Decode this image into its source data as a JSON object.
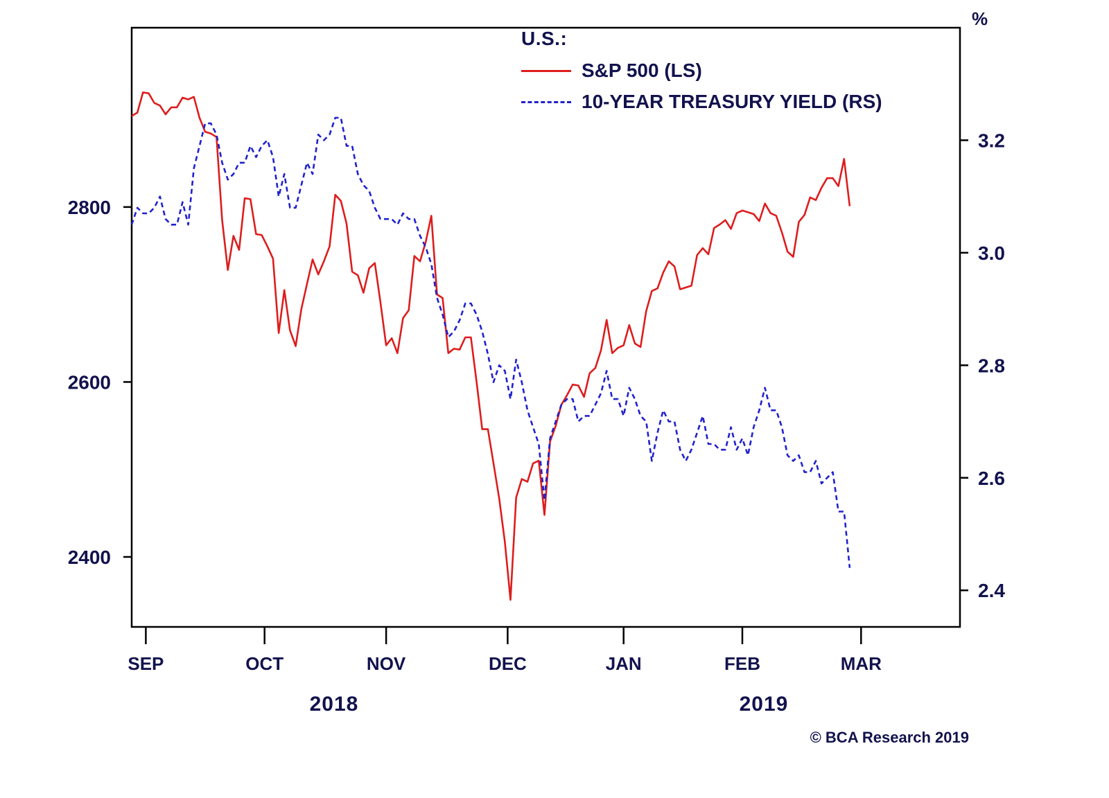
{
  "colors": {
    "sp500": "#dd1d1d",
    "treasury": "#2121cd",
    "ink": "#12124e",
    "frame": "#000000"
  },
  "legend": {
    "group": "U.S.:",
    "series1": "S&P 500 (LS)",
    "series2": "10-YEAR TREASURY YIELD (RS)"
  },
  "right_axis_unit": "%",
  "footer": {
    "year_left": "2018",
    "year_right": "2019",
    "credit": "© BCA Research 2019"
  },
  "chart_data": {
    "type": "line",
    "title": "",
    "legend_position": "top-center-inside",
    "grid": false,
    "x": {
      "month_labels": [
        "SEP",
        "OCT",
        "NOV",
        "DEC",
        "JAN",
        "FEB",
        "MAR"
      ],
      "month_tick_positions": [
        2.5,
        23.5,
        45,
        66.5,
        87,
        108,
        129
      ],
      "total_span": 146.5,
      "note": "daily points, mid-September 2018 through late March 2019"
    },
    "left_axis": {
      "label_ticks": [
        2800,
        2600,
        2400
      ],
      "range": [
        2320,
        3005
      ],
      "series": "S&P 500"
    },
    "right_axis": {
      "label_ticks": [
        3.2,
        3.0,
        2.8,
        2.6,
        2.4
      ],
      "range": [
        2.335,
        3.4
      ],
      "series": "10-year Treasury yield (%)"
    },
    "series": [
      {
        "name": "S&P 500 (LS)",
        "axis": "left",
        "color": "#dd1d1d",
        "dash": null,
        "values": [
          2904,
          2908,
          2931,
          2930,
          2919,
          2916,
          2906,
          2914,
          2914,
          2925,
          2923,
          2926,
          2902,
          2886,
          2884,
          2880,
          2785,
          2728,
          2767,
          2751,
          2810,
          2809,
          2769,
          2768,
          2755,
          2741,
          2656,
          2705,
          2659,
          2641,
          2683,
          2712,
          2740,
          2723,
          2738,
          2755,
          2814,
          2807,
          2781,
          2726,
          2722,
          2702,
          2730,
          2736,
          2691,
          2642,
          2650,
          2633,
          2673,
          2682,
          2744,
          2738,
          2760,
          2790,
          2700,
          2696,
          2633,
          2638,
          2637,
          2651,
          2651,
          2600,
          2546,
          2546,
          2507,
          2467,
          2417,
          2351,
          2468,
          2489,
          2486,
          2507,
          2510,
          2448,
          2532,
          2550,
          2574,
          2585,
          2597,
          2596,
          2583,
          2610,
          2616,
          2636,
          2671,
          2633,
          2639,
          2642,
          2665,
          2644,
          2640,
          2681,
          2704,
          2707,
          2725,
          2738,
          2732,
          2706,
          2708,
          2710,
          2745,
          2753,
          2746,
          2776,
          2780,
          2785,
          2775,
          2793,
          2796,
          2794,
          2792,
          2784,
          2804,
          2793,
          2790,
          2771,
          2749,
          2743,
          2783,
          2791,
          2811,
          2808,
          2822,
          2833,
          2833,
          2824,
          2855,
          2801
        ]
      },
      {
        "name": "10-YEAR TREASURY YIELD (RS)",
        "axis": "right",
        "color": "#2121cd",
        "dash": [
          7,
          5
        ],
        "values": [
          3.05,
          3.08,
          3.07,
          3.07,
          3.08,
          3.1,
          3.06,
          3.05,
          3.05,
          3.09,
          3.05,
          3.15,
          3.19,
          3.23,
          3.23,
          3.21,
          3.16,
          3.13,
          3.14,
          3.16,
          3.16,
          3.19,
          3.17,
          3.19,
          3.2,
          3.17,
          3.1,
          3.14,
          3.08,
          3.08,
          3.12,
          3.16,
          3.14,
          3.21,
          3.2,
          3.21,
          3.24,
          3.24,
          3.19,
          3.19,
          3.14,
          3.12,
          3.11,
          3.08,
          3.06,
          3.06,
          3.06,
          3.05,
          3.07,
          3.06,
          3.06,
          3.03,
          3.01,
          2.98,
          2.92,
          2.89,
          2.85,
          2.86,
          2.88,
          2.91,
          2.91,
          2.89,
          2.86,
          2.82,
          2.77,
          2.8,
          2.79,
          2.74,
          2.81,
          2.77,
          2.72,
          2.69,
          2.66,
          2.56,
          2.67,
          2.7,
          2.73,
          2.74,
          2.74,
          2.7,
          2.71,
          2.71,
          2.73,
          2.75,
          2.79,
          2.74,
          2.74,
          2.71,
          2.76,
          2.74,
          2.71,
          2.7,
          2.63,
          2.68,
          2.72,
          2.7,
          2.7,
          2.65,
          2.63,
          2.65,
          2.68,
          2.71,
          2.66,
          2.66,
          2.65,
          2.65,
          2.69,
          2.65,
          2.67,
          2.64,
          2.69,
          2.72,
          2.76,
          2.72,
          2.72,
          2.69,
          2.64,
          2.63,
          2.64,
          2.61,
          2.61,
          2.63,
          2.59,
          2.6,
          2.61,
          2.54,
          2.54,
          2.44
        ]
      }
    ]
  }
}
